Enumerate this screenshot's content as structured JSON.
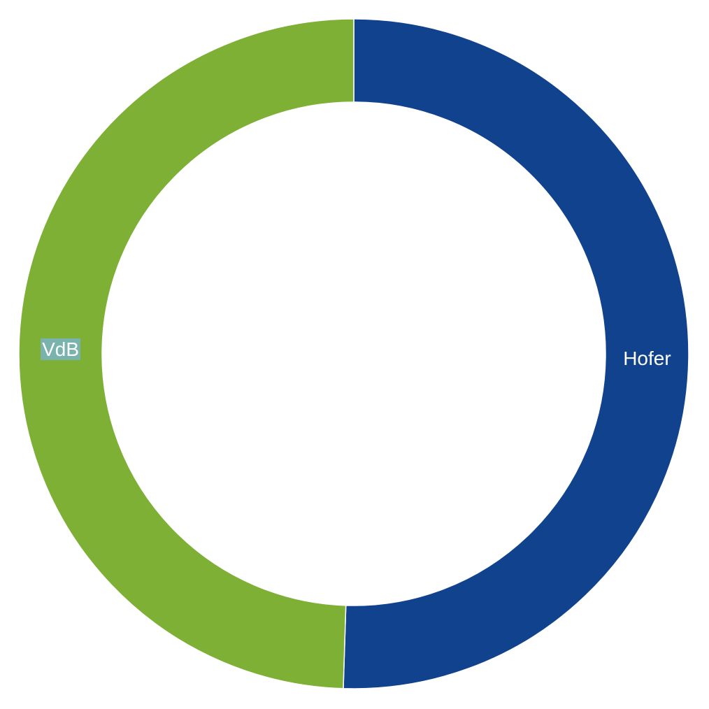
{
  "chart_data": {
    "type": "pie",
    "variant": "donut",
    "categories": [
      "Hofer",
      "VdB"
    ],
    "values": [
      50.5,
      49.5
    ],
    "colors": [
      "#11428d",
      "#7db035"
    ],
    "label_highlight_colors": [
      "",
      "#7ab3ad"
    ],
    "start_angle_deg": 0,
    "direction": "clockwise",
    "legend": "none"
  }
}
